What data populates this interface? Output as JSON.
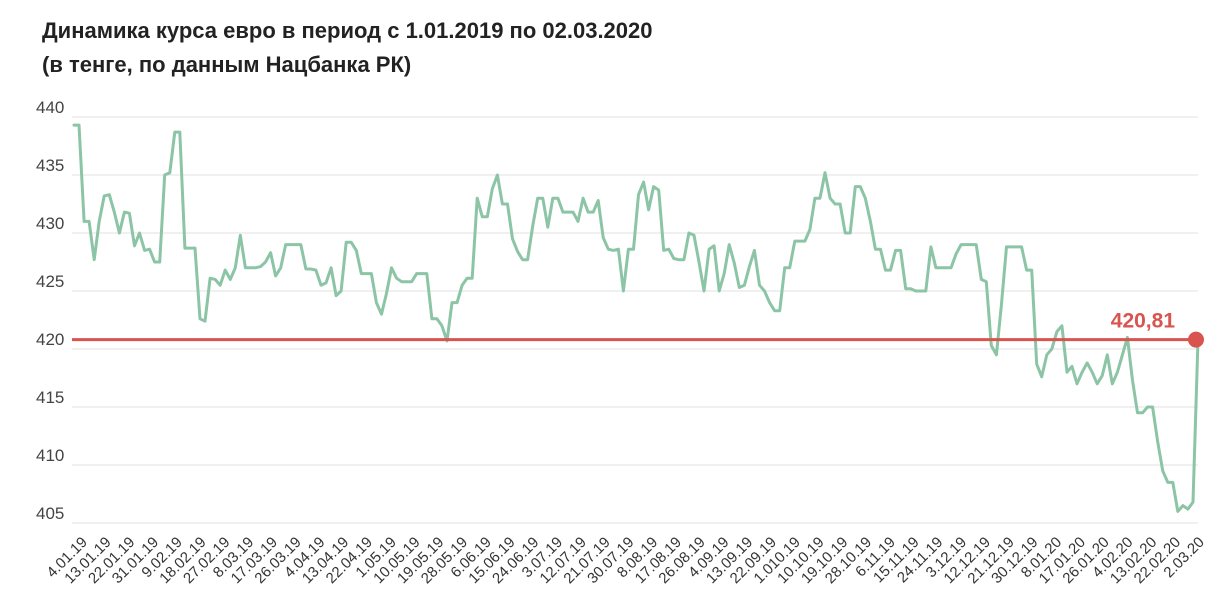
{
  "title_line1": "Динамика курса евро в период с 1.01.2019 по 02.03.2020",
  "title_line2": "(в тенге, по данным Нацбанка РК)",
  "chart_data": {
    "type": "line",
    "title": "Динамика курса евро в период с 1.01.2019 по 02.03.2020",
    "subtitle": "(в тенге, по данным Нацбанка РК)",
    "xlabel": "",
    "ylabel": "",
    "ylim": [
      405,
      440
    ],
    "yticks": [
      405,
      410,
      415,
      420,
      425,
      430,
      435,
      440
    ],
    "grid": true,
    "line_color": "#8cc4a6",
    "ref_color": "#d9534f",
    "x_tick_labels": [
      "4.01.19",
      "13.01.19",
      "22.01.19",
      "31.01.19",
      "9.02.19",
      "18.02.19",
      "27.02.19",
      "8.03.19",
      "17.03.19",
      "26.03.19",
      "4.04.19",
      "13.04.19",
      "22.04.19",
      "1.05.19",
      "10.05.19",
      "19.05.19",
      "28.05.19",
      "6.06.19",
      "15.06.19",
      "24.06.19",
      "3.07.19",
      "12.07.19",
      "21.07.19",
      "30.07.19",
      "8.08.19",
      "17.08.19",
      "26.08.19",
      "4.09.19",
      "13.09.19",
      "22.09.19",
      "1.010.19",
      "10.10.19",
      "19.10.19",
      "28.10.19",
      "6.11.19",
      "15.11.19",
      "24.11.19",
      "3.12.19",
      "12.12.19",
      "21.12.19",
      "30.12.19",
      "8.01.20",
      "17.01.20",
      "26.01.20",
      "4.02.20",
      "13.02.20",
      "22.02.20",
      "2.03.20"
    ],
    "series": [
      {
        "values": [
          439.3,
          439.3,
          431.0,
          431.0,
          427.7,
          431.0,
          433.2,
          433.3,
          431.8,
          430.0,
          431.8,
          431.7,
          428.9,
          430.0,
          428.5,
          428.6,
          427.5,
          427.5,
          435.0,
          435.2,
          438.7,
          438.7,
          428.7,
          428.7,
          428.7,
          422.6,
          422.4,
          426.1,
          426.0,
          425.5,
          426.8,
          426.0,
          427.0,
          429.8,
          427.0,
          427.0,
          427.0,
          427.1,
          427.5,
          428.3,
          426.3,
          427.0,
          429.0,
          429.0,
          429.0,
          429.0,
          426.9,
          426.9,
          426.8,
          425.5,
          425.7,
          427.0,
          424.6,
          425.0,
          429.2,
          429.2,
          428.5,
          426.5,
          426.5,
          426.5,
          424.0,
          423.0,
          424.8,
          427.0,
          426.1,
          425.8,
          425.8,
          425.8,
          426.5,
          426.5,
          426.5,
          422.6,
          422.6,
          422.0,
          420.7,
          424.0,
          424.0,
          425.5,
          426.1,
          426.1,
          433.0,
          431.4,
          431.4,
          433.8,
          435.0,
          432.5,
          432.5,
          429.5,
          428.4,
          427.7,
          427.7,
          430.6,
          433.0,
          433.0,
          430.5,
          433.0,
          433.0,
          431.8,
          431.8,
          431.8,
          431.0,
          433.0,
          431.8,
          431.8,
          432.8,
          429.6,
          428.6,
          428.5,
          428.6,
          425.0,
          428.6,
          428.6,
          433.3,
          434.4,
          432.0,
          434.0,
          433.7,
          428.5,
          428.6,
          427.8,
          427.7,
          427.7,
          430.0,
          429.8,
          427.5,
          425.0,
          428.6,
          428.9,
          425.0,
          426.5,
          429.0,
          427.4,
          425.3,
          425.5,
          427.1,
          428.5,
          425.5,
          425.0,
          424.0,
          423.3,
          423.3,
          427.0,
          427.0,
          429.3,
          429.3,
          429.3,
          430.3,
          433.0,
          433.0,
          435.2,
          433.0,
          432.5,
          432.5,
          430.0,
          430.0,
          434.0,
          434.0,
          433.0,
          431.0,
          428.6,
          428.6,
          426.8,
          426.8,
          428.5,
          428.5,
          425.2,
          425.2,
          425.0,
          425.0,
          425.0,
          428.8,
          427.0,
          427.0,
          427.0,
          427.0,
          428.2,
          429.0,
          429.0,
          429.0,
          429.0,
          426.0,
          425.8,
          420.3,
          419.5,
          423.8,
          428.8,
          428.8,
          428.8,
          428.8,
          426.8,
          426.8,
          418.7,
          417.6,
          419.5,
          420.0,
          421.5,
          422.0,
          418.0,
          418.5,
          417.0,
          418.0,
          418.8,
          418.0,
          417.0,
          417.7,
          419.5,
          417.0,
          418.0,
          419.5,
          421.0,
          417.3,
          414.5,
          414.5,
          415.0,
          415.0,
          412.0,
          409.5,
          408.5,
          408.5,
          406.0,
          406.5,
          406.2,
          406.8,
          420.8
        ]
      }
    ],
    "reference_line": {
      "value": 420.81,
      "label": "420,81"
    }
  }
}
